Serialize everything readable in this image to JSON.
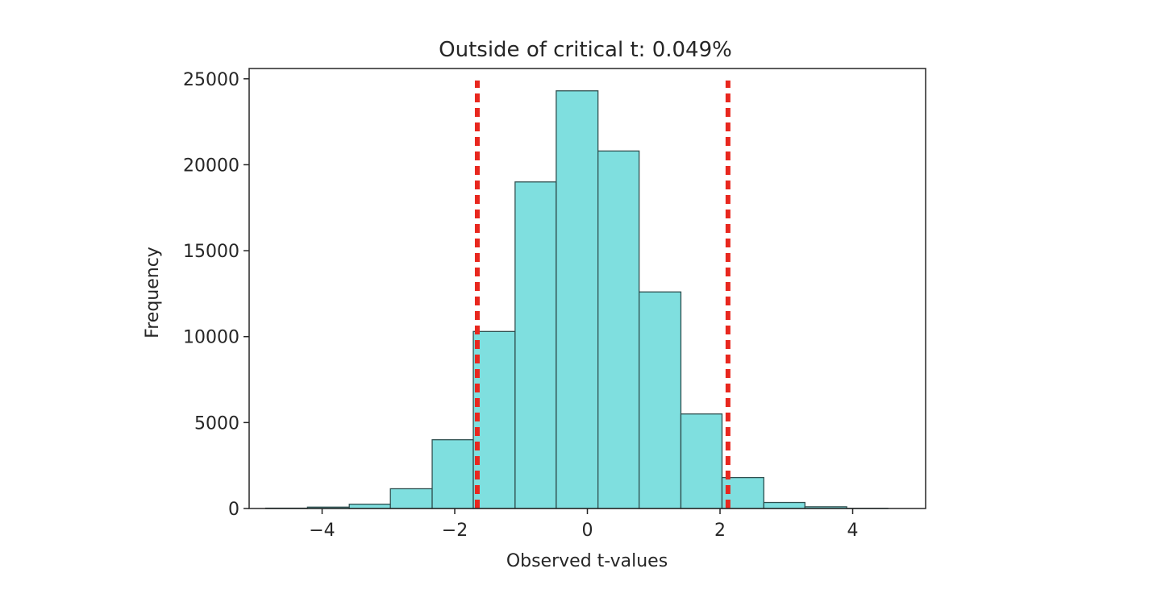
{
  "chart_data": {
    "type": "bar",
    "title": "Outside of critical t: 0.049%",
    "xlabel": "Observed t-values",
    "ylabel": "Frequency",
    "xlim": [
      -5.1,
      5.1
    ],
    "ylim": [
      0,
      25600
    ],
    "xticks": [
      -4,
      -2,
      0,
      2,
      4
    ],
    "xtick_labels": [
      "−4",
      "−2",
      "0",
      "2",
      "4"
    ],
    "yticks": [
      0,
      5000,
      10000,
      15000,
      20000,
      25000
    ],
    "ytick_labels": [
      "0",
      "5000",
      "10000",
      "15000",
      "20000",
      "25000"
    ],
    "bins": [
      {
        "x0": -4.85,
        "x1": -4.22,
        "count": 20
      },
      {
        "x0": -4.22,
        "x1": -3.59,
        "count": 80
      },
      {
        "x0": -3.59,
        "x1": -2.97,
        "count": 250
      },
      {
        "x0": -2.97,
        "x1": -2.34,
        "count": 1150
      },
      {
        "x0": -2.34,
        "x1": -1.72,
        "count": 4000
      },
      {
        "x0": -1.72,
        "x1": -1.09,
        "count": 10300
      },
      {
        "x0": -1.09,
        "x1": -0.47,
        "count": 19000
      },
      {
        "x0": -0.47,
        "x1": 0.16,
        "count": 24300
      },
      {
        "x0": 0.16,
        "x1": 0.78,
        "count": 20800
      },
      {
        "x0": 0.78,
        "x1": 1.41,
        "count": 12600
      },
      {
        "x0": 1.41,
        "x1": 2.03,
        "count": 5500
      },
      {
        "x0": 2.03,
        "x1": 2.66,
        "count": 1800
      },
      {
        "x0": 2.66,
        "x1": 3.28,
        "count": 350
      },
      {
        "x0": 3.28,
        "x1": 3.91,
        "count": 100
      },
      {
        "x0": 3.91,
        "x1": 4.53,
        "count": 10
      }
    ],
    "critical_lines": [
      {
        "x": -1.66,
        "y_top": 24900,
        "color": "#e8271e",
        "style": "dotted"
      },
      {
        "x": 2.12,
        "y_top": 24900,
        "color": "#e8271e",
        "style": "dotted"
      }
    ],
    "bar_color": "#7fdfdf",
    "bar_edge_color": "#2f4f4f",
    "grid": false,
    "legend": "none"
  }
}
